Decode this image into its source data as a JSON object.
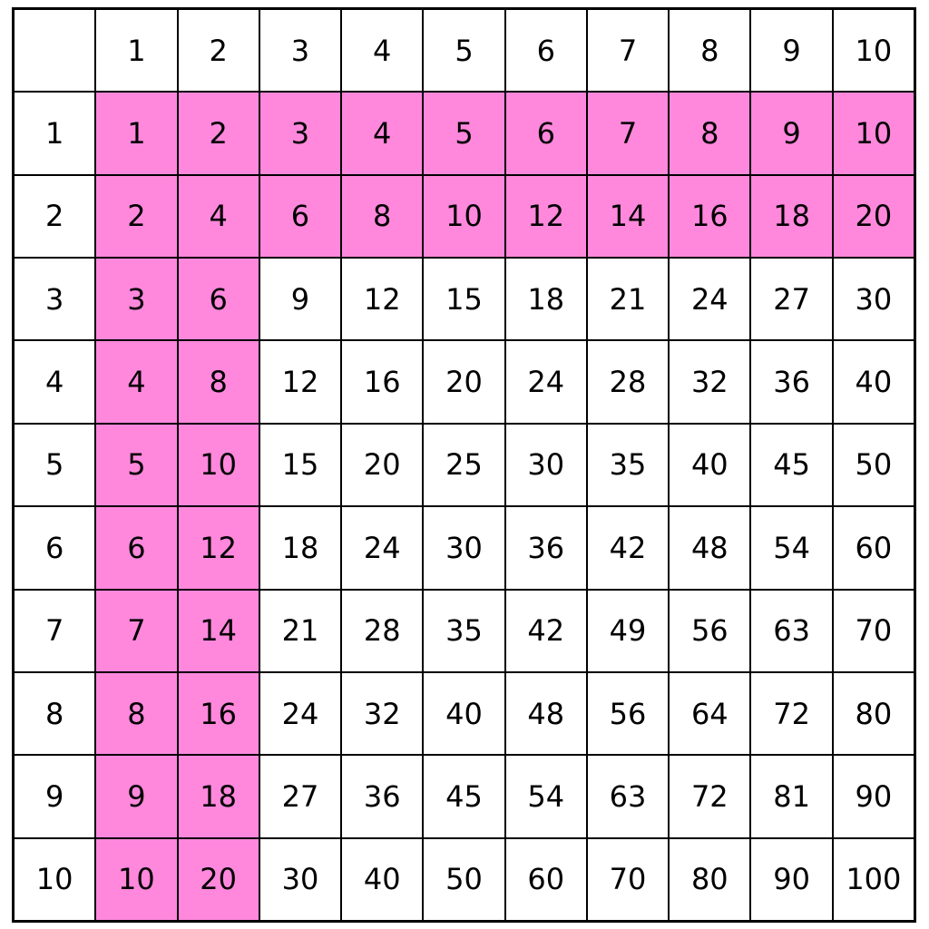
{
  "table": {
    "highlight_color": "#ff88dd",
    "columns": [
      1,
      2,
      3,
      4,
      5,
      6,
      7,
      8,
      9,
      10
    ],
    "rows": [
      {
        "label": 1,
        "cells": [
          1,
          2,
          3,
          4,
          5,
          6,
          7,
          8,
          9,
          10
        ]
      },
      {
        "label": 2,
        "cells": [
          2,
          4,
          6,
          8,
          10,
          12,
          14,
          16,
          18,
          20
        ]
      },
      {
        "label": 3,
        "cells": [
          3,
          6,
          9,
          12,
          15,
          18,
          21,
          24,
          27,
          30
        ]
      },
      {
        "label": 4,
        "cells": [
          4,
          8,
          12,
          16,
          20,
          24,
          28,
          32,
          36,
          40
        ]
      },
      {
        "label": 5,
        "cells": [
          5,
          10,
          15,
          20,
          25,
          30,
          35,
          40,
          45,
          50
        ]
      },
      {
        "label": 6,
        "cells": [
          6,
          12,
          18,
          24,
          30,
          36,
          42,
          48,
          54,
          60
        ]
      },
      {
        "label": 7,
        "cells": [
          7,
          14,
          21,
          28,
          35,
          42,
          49,
          56,
          63,
          70
        ]
      },
      {
        "label": 8,
        "cells": [
          8,
          16,
          24,
          32,
          40,
          48,
          56,
          64,
          72,
          80
        ]
      },
      {
        "label": 9,
        "cells": [
          9,
          18,
          27,
          36,
          45,
          54,
          63,
          72,
          81,
          90
        ]
      },
      {
        "label": 10,
        "cells": [
          10,
          20,
          30,
          40,
          50,
          60,
          70,
          80,
          90,
          100
        ]
      }
    ]
  }
}
